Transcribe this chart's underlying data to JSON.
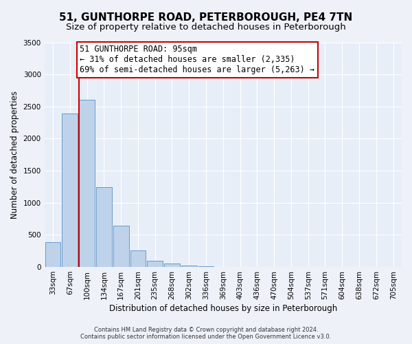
{
  "title": "51, GUNTHORPE ROAD, PETERBOROUGH, PE4 7TN",
  "subtitle": "Size of property relative to detached houses in Peterborough",
  "xlabel": "Distribution of detached houses by size in Peterborough",
  "ylabel": "Number of detached properties",
  "bar_labels": [
    "33sqm",
    "67sqm",
    "100sqm",
    "134sqm",
    "167sqm",
    "201sqm",
    "235sqm",
    "268sqm",
    "302sqm",
    "336sqm",
    "369sqm",
    "403sqm",
    "436sqm",
    "470sqm",
    "504sqm",
    "537sqm",
    "571sqm",
    "604sqm",
    "638sqm",
    "672sqm",
    "705sqm"
  ],
  "bar_values": [
    390,
    2390,
    2600,
    1240,
    640,
    260,
    100,
    55,
    25,
    10,
    5,
    2,
    0,
    0,
    0,
    0,
    0,
    0,
    0,
    0,
    0
  ],
  "bar_color": "#bed3ea",
  "bar_edge_color": "#6699cc",
  "vline_x_index": 2,
  "vline_color": "#cc0000",
  "ylim": [
    0,
    3500
  ],
  "yticks": [
    0,
    500,
    1000,
    1500,
    2000,
    2500,
    3000,
    3500
  ],
  "annotation_line1": "51 GUNTHORPE ROAD: 95sqm",
  "annotation_line2": "← 31% of detached houses are smaller (2,335)",
  "annotation_line3": "69% of semi-detached houses are larger (5,263) →",
  "annotation_box_color": "#ffffff",
  "annotation_box_edge": "#cc0000",
  "footer_text": "Contains HM Land Registry data © Crown copyright and database right 2024.\nContains public sector information licensed under the Open Government Licence v3.0.",
  "bg_color": "#eef2f8",
  "plot_bg_color": "#e8eef8",
  "grid_color": "#ffffff",
  "title_fontsize": 11,
  "subtitle_fontsize": 9.5,
  "axis_label_fontsize": 8.5,
  "tick_fontsize": 7.5,
  "annotation_fontsize": 8.5
}
